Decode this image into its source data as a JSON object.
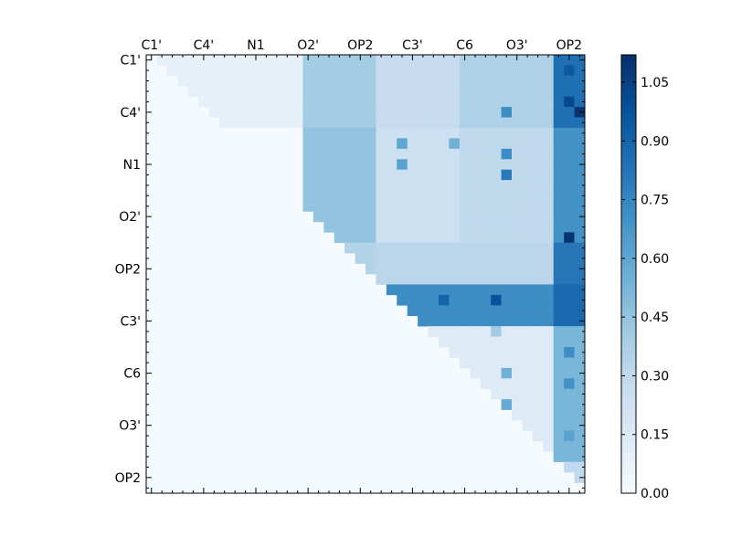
{
  "chart_data": {
    "type": "heatmap",
    "x_tick_labels": [
      "C1'",
      "C4'",
      "N1",
      "O2'",
      "OP2",
      "C3'",
      "C6",
      "O3'",
      "OP2"
    ],
    "y_tick_labels": [
      "C1'",
      "C4'",
      "N1",
      "O2'",
      "OP2",
      "C3'",
      "C6",
      "O3'",
      "OP2"
    ],
    "n_cells": 42,
    "label_every": 5,
    "colorbar": {
      "min": 0.0,
      "max": 1.12,
      "tick_values": [
        0.0,
        0.15,
        0.3,
        0.45,
        0.6,
        0.75,
        0.9,
        1.05
      ],
      "tick_labels": [
        "0.00",
        "0.15",
        "0.30",
        "0.45",
        "0.60",
        "0.75",
        "0.90",
        "1.05"
      ]
    },
    "colormap": [
      "#f7fbff",
      "#deebf7",
      "#c6dbef",
      "#9ecae1",
      "#6baed6",
      "#4292c6",
      "#2171b5",
      "#08519c",
      "#08306b"
    ],
    "blocks": [
      {
        "rows": [
          0,
          7
        ],
        "cols": [
          0,
          15
        ],
        "value": 0.1
      },
      {
        "rows": [
          0,
          7
        ],
        "cols": [
          15,
          22
        ],
        "value": 0.4
      },
      {
        "rows": [
          0,
          7
        ],
        "cols": [
          22,
          30
        ],
        "value": 0.28
      },
      {
        "rows": [
          0,
          7
        ],
        "cols": [
          30,
          39
        ],
        "value": 0.36
      },
      {
        "rows": [
          0,
          7
        ],
        "cols": [
          39,
          42
        ],
        "value": 0.85
      },
      {
        "rows": [
          7,
          18
        ],
        "cols": [
          15,
          22
        ],
        "value": 0.45
      },
      {
        "rows": [
          7,
          18
        ],
        "cols": [
          22,
          30
        ],
        "value": 0.24
      },
      {
        "rows": [
          7,
          18
        ],
        "cols": [
          30,
          39
        ],
        "value": 0.3
      },
      {
        "rows": [
          7,
          18
        ],
        "cols": [
          39,
          42
        ],
        "value": 0.7
      },
      {
        "rows": [
          18,
          22
        ],
        "cols": [
          22,
          39
        ],
        "value": 0.32
      },
      {
        "rows": [
          18,
          22
        ],
        "cols": [
          39,
          42
        ],
        "value": 0.82
      },
      {
        "rows": [
          18,
          22
        ],
        "cols": [
          15,
          22
        ],
        "value": 0.35
      },
      {
        "rows": [
          22,
          26
        ],
        "cols": [
          22,
          39
        ],
        "value": 0.72
      },
      {
        "rows": [
          22,
          26
        ],
        "cols": [
          39,
          42
        ],
        "value": 0.88
      },
      {
        "rows": [
          26,
          39
        ],
        "cols": [
          26,
          39
        ],
        "value": 0.14
      },
      {
        "rows": [
          26,
          39
        ],
        "cols": [
          39,
          42
        ],
        "value": 0.52
      },
      {
        "rows": [
          39,
          42
        ],
        "cols": [
          39,
          42
        ],
        "value": 0.3
      }
    ],
    "bright_cells": [
      {
        "r": 1,
        "c": 40,
        "v": 0.95
      },
      {
        "r": 4,
        "c": 40,
        "v": 1.02
      },
      {
        "r": 5,
        "c": 41,
        "v": 1.1
      },
      {
        "r": 17,
        "c": 40,
        "v": 1.1
      },
      {
        "r": 23,
        "c": 33,
        "v": 0.98
      },
      {
        "r": 23,
        "c": 28,
        "v": 0.9
      },
      {
        "r": 5,
        "c": 34,
        "v": 0.72
      },
      {
        "r": 9,
        "c": 34,
        "v": 0.72
      },
      {
        "r": 11,
        "c": 34,
        "v": 0.8
      },
      {
        "r": 8,
        "c": 24,
        "v": 0.6
      },
      {
        "r": 10,
        "c": 24,
        "v": 0.62
      },
      {
        "r": 8,
        "c": 29,
        "v": 0.55
      },
      {
        "r": 26,
        "c": 33,
        "v": 0.4
      },
      {
        "r": 28,
        "c": 40,
        "v": 0.72
      },
      {
        "r": 31,
        "c": 40,
        "v": 0.7
      },
      {
        "r": 30,
        "c": 34,
        "v": 0.55
      },
      {
        "r": 33,
        "c": 34,
        "v": 0.58
      },
      {
        "r": 36,
        "c": 40,
        "v": 0.62
      },
      {
        "r": 40,
        "c": 40,
        "v": 0.9
      },
      {
        "r": 36,
        "c": 34,
        "v": 0.6
      }
    ]
  }
}
